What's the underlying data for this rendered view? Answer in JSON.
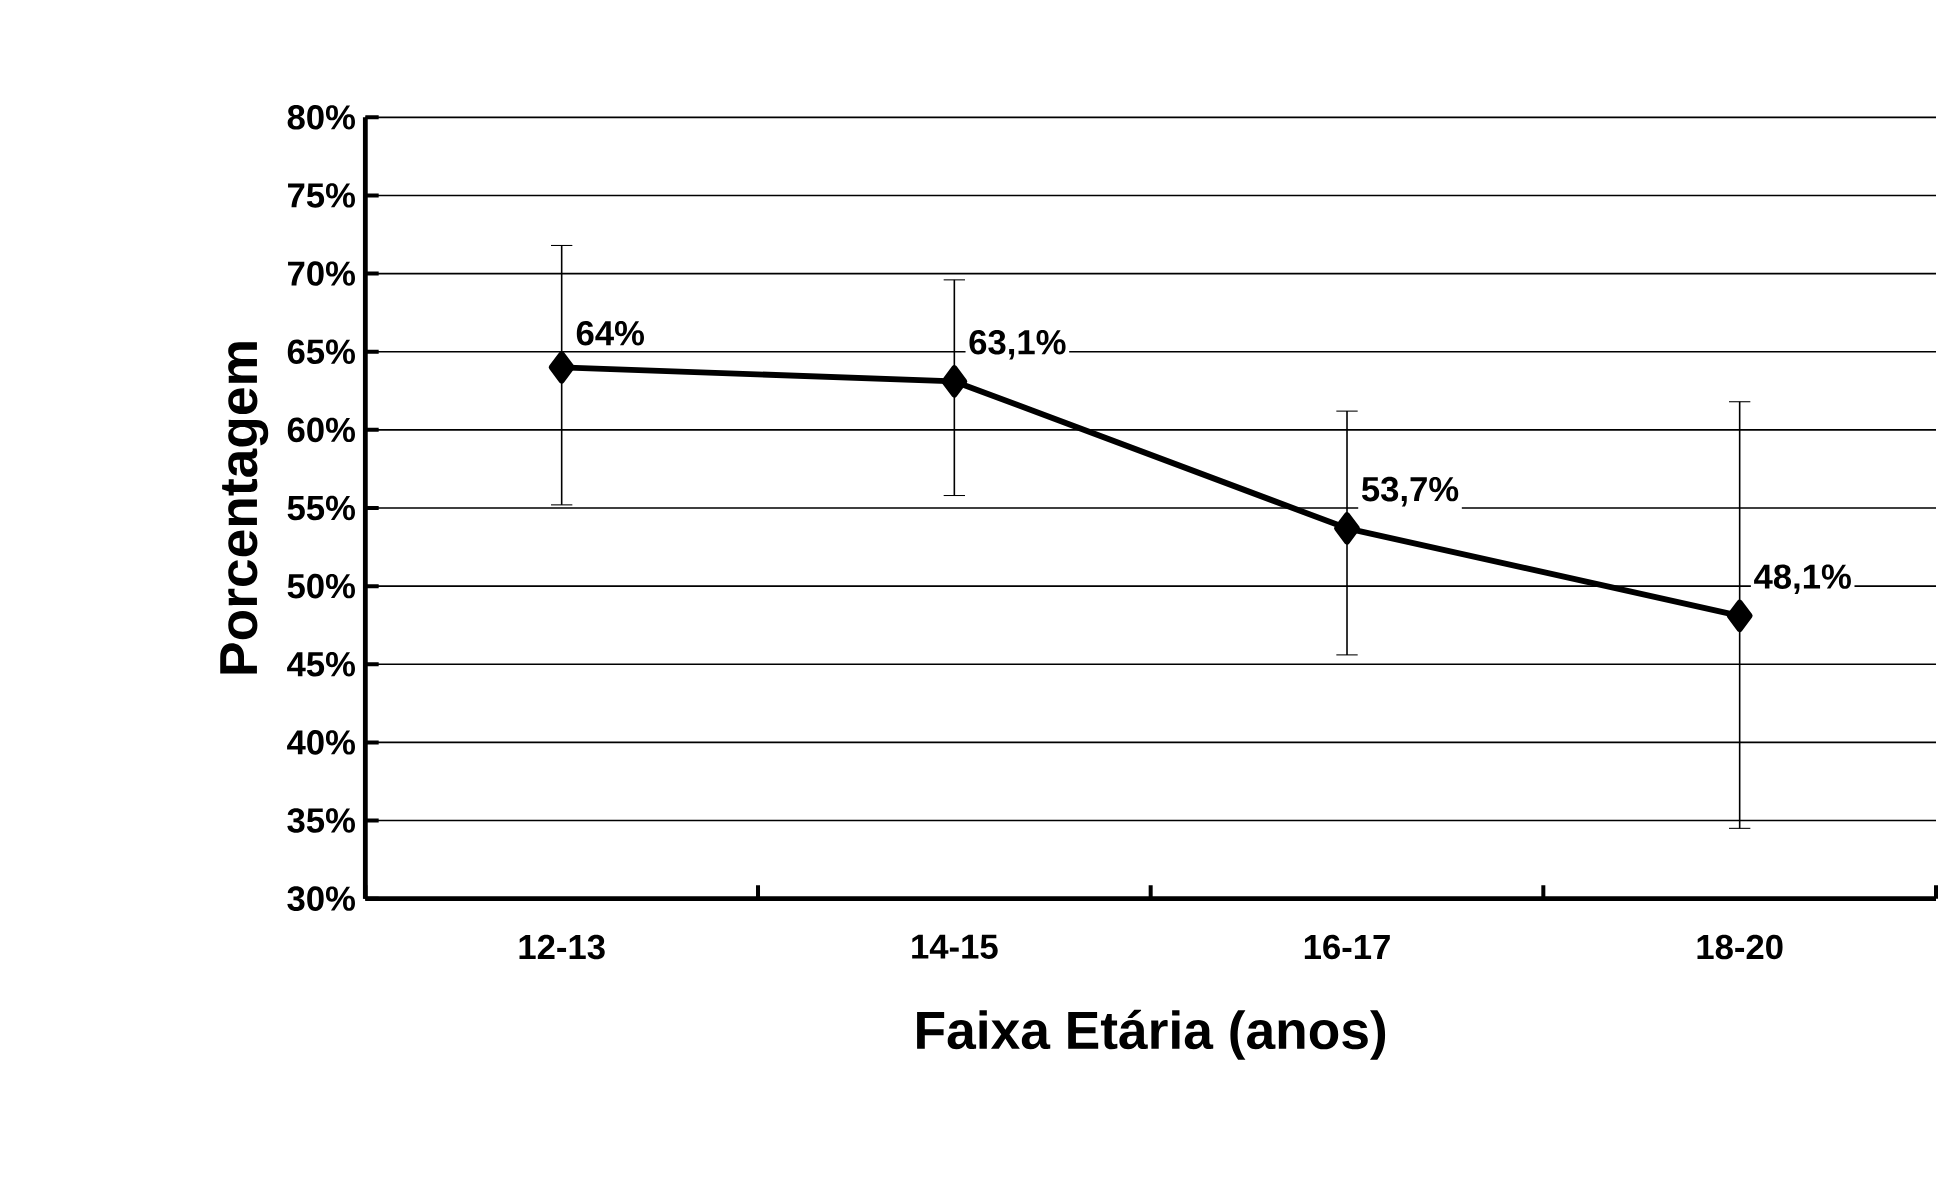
{
  "chart_data": {
    "type": "line",
    "xlabel": "Faixa Etária (anos)",
    "ylabel": "Porcentagem",
    "categories": [
      "12-13",
      "14-15",
      "16-17",
      "18-20"
    ],
    "series": [
      {
        "color": "#000000",
        "values": [
          64,
          63.1,
          53.7,
          48.1
        ],
        "value_labels": [
          "64%",
          "63,1%",
          "53,7%",
          "48,1%"
        ],
        "errors": [
          [
            55.2,
            71.8
          ],
          [
            55.8,
            69.6
          ],
          [
            45.6,
            61.2
          ],
          [
            34.5,
            61.8
          ]
        ]
      }
    ],
    "ylim": [
      30,
      80
    ],
    "yticks": [
      {
        "value": 30,
        "label": "30%"
      },
      {
        "value": 35,
        "label": "35%"
      },
      {
        "value": 40,
        "label": "40%"
      },
      {
        "value": 45,
        "label": "45%"
      },
      {
        "value": 50,
        "label": "50%"
      },
      {
        "value": 55,
        "label": "55%"
      },
      {
        "value": 60,
        "label": "60%"
      },
      {
        "value": 65,
        "label": "65%"
      },
      {
        "value": 70,
        "label": "70%"
      },
      {
        "value": 75,
        "label": "75%"
      },
      {
        "value": 80,
        "label": "80%"
      }
    ],
    "grid": "y",
    "marker": "diamond",
    "line_style": "solid"
  }
}
